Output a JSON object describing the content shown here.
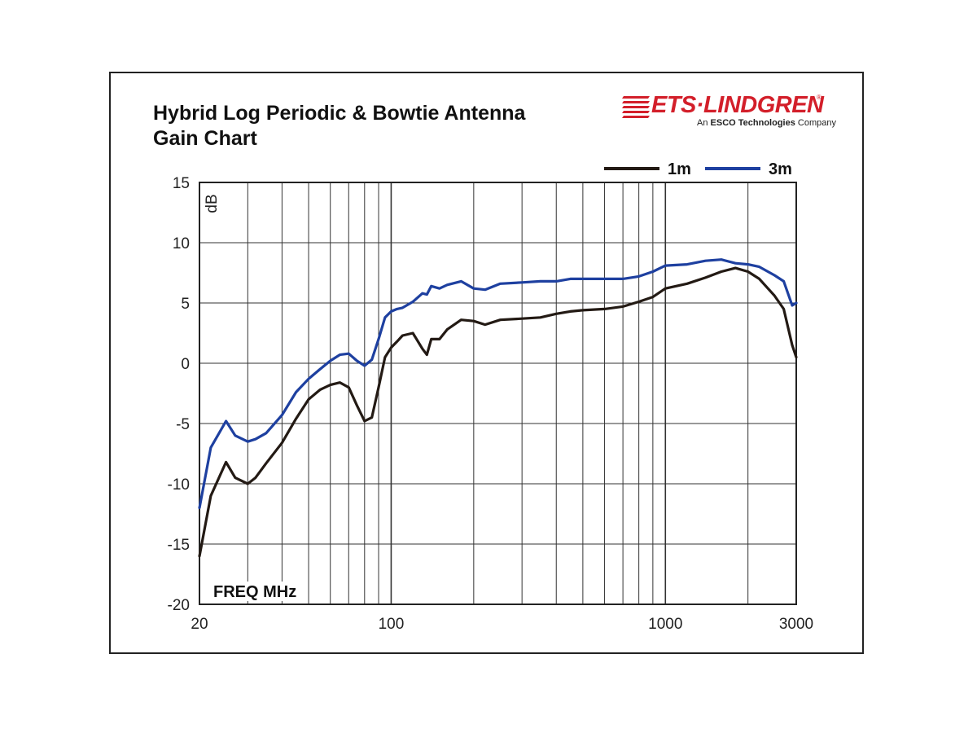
{
  "title_line1": "Hybrid Log Periodic & Bowtie Antenna",
  "title_line2": "Gain Chart",
  "logo": {
    "name": "ETS·LINDGREN",
    "registered": "®",
    "tagline_prefix": "An ",
    "tagline_bold": "ESCO Technologies",
    "tagline_suffix": " Company",
    "color": "#d31f2a"
  },
  "chart_data": {
    "type": "line",
    "xscale": "log",
    "xlim": [
      20,
      3000
    ],
    "ylim": [
      -20,
      15
    ],
    "xlabel": "FREQ MHz",
    "ylabel": "dB",
    "grid": true,
    "legend_position": "top-right",
    "yticks": [
      "15",
      "10",
      "5",
      "0",
      "-5",
      "-10",
      "-15",
      "-20"
    ],
    "xticks": [
      "20",
      "100",
      "1000",
      "3000"
    ],
    "series": [
      {
        "name": "1m",
        "color": "#231a14",
        "x": [
          20,
          22,
          25,
          27,
          30,
          32,
          35,
          40,
          45,
          50,
          55,
          60,
          65,
          70,
          75,
          80,
          85,
          90,
          95,
          100,
          105,
          110,
          120,
          130,
          135,
          140,
          150,
          160,
          180,
          200,
          220,
          250,
          300,
          350,
          400,
          450,
          500,
          600,
          700,
          800,
          900,
          1000,
          1200,
          1400,
          1600,
          1800,
          2000,
          2200,
          2500,
          2700,
          2900,
          3000
        ],
        "y": [
          -16,
          -11,
          -8.2,
          -9.5,
          -10,
          -9.5,
          -8.3,
          -6.6,
          -4.6,
          -3,
          -2.2,
          -1.8,
          -1.6,
          -2,
          -3.5,
          -4.8,
          -4.5,
          -2,
          0.5,
          1.3,
          1.8,
          2.3,
          2.5,
          1.2,
          0.7,
          2,
          2,
          2.8,
          3.6,
          3.5,
          3.2,
          3.6,
          3.7,
          3.8,
          4.1,
          4.3,
          4.4,
          4.5,
          4.7,
          5.1,
          5.5,
          6.2,
          6.6,
          7.1,
          7.6,
          7.9,
          7.6,
          7,
          5.6,
          4.5,
          1.5,
          0.5
        ]
      },
      {
        "name": "3m",
        "color": "#1e40a0",
        "x": [
          20,
          22,
          25,
          27,
          30,
          32,
          35,
          40,
          45,
          50,
          55,
          60,
          65,
          70,
          75,
          80,
          85,
          90,
          95,
          100,
          105,
          110,
          120,
          130,
          135,
          140,
          150,
          160,
          180,
          200,
          220,
          250,
          300,
          350,
          400,
          450,
          500,
          600,
          700,
          800,
          900,
          1000,
          1200,
          1400,
          1600,
          1800,
          2000,
          2200,
          2500,
          2700,
          2900,
          3000
        ],
        "y": [
          -12,
          -7,
          -4.8,
          -6,
          -6.5,
          -6.3,
          -5.8,
          -4.3,
          -2.4,
          -1.3,
          -0.5,
          0.2,
          0.7,
          0.8,
          0.2,
          -0.2,
          0.3,
          2,
          3.8,
          4.3,
          4.5,
          4.6,
          5.1,
          5.8,
          5.7,
          6.4,
          6.2,
          6.5,
          6.8,
          6.2,
          6.1,
          6.6,
          6.7,
          6.8,
          6.8,
          7,
          7,
          7,
          7,
          7.2,
          7.6,
          8.1,
          8.2,
          8.5,
          8.6,
          8.3,
          8.2,
          8,
          7.3,
          6.8,
          4.8,
          5
        ]
      }
    ]
  }
}
